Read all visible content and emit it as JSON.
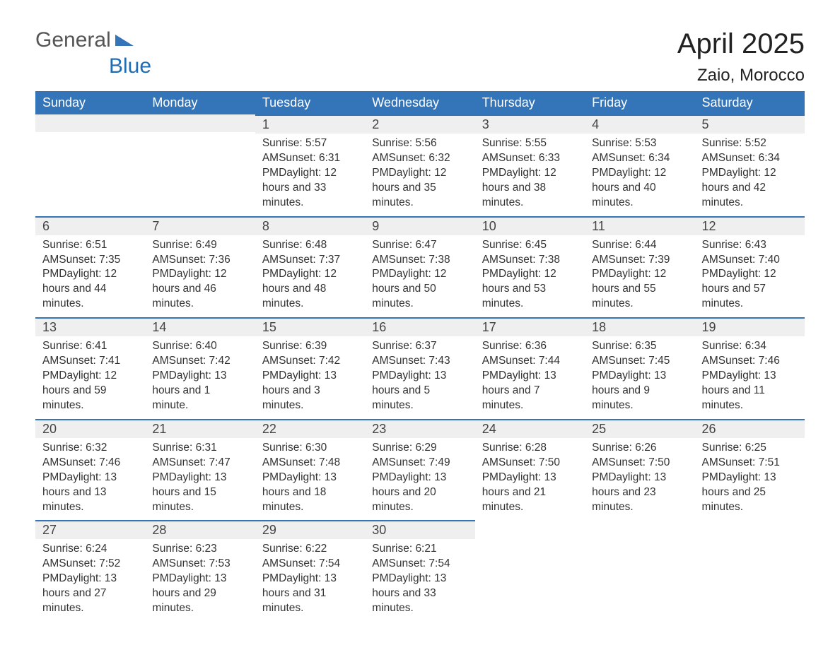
{
  "logo": {
    "text_general": "General",
    "text_blue": "Blue",
    "icon_color": "#3474b8"
  },
  "header": {
    "month_title": "April 2025",
    "location": "Zaio, Morocco"
  },
  "style": {
    "header_bg": "#3474b8",
    "header_text_color": "#ffffff",
    "day_separator_color": "#3474b8",
    "day_num_bg": "#efefef",
    "body_text_color": "#333333",
    "page_bg": "#ffffff",
    "title_fontsize": 40,
    "location_fontsize": 24,
    "header_fontsize": 18,
    "daynum_fontsize": 18,
    "data_fontsize": 15.5
  },
  "weekday_headers": [
    "Sunday",
    "Monday",
    "Tuesday",
    "Wednesday",
    "Thursday",
    "Friday",
    "Saturday"
  ],
  "labels": {
    "sunrise": "Sunrise: ",
    "sunset": "Sunset: ",
    "daylight": "Daylight: "
  },
  "weeks": [
    [
      null,
      null,
      {
        "n": "1",
        "sunrise": "5:57 AM",
        "sunset": "6:31 PM",
        "daylight": "12 hours and 33 minutes."
      },
      {
        "n": "2",
        "sunrise": "5:56 AM",
        "sunset": "6:32 PM",
        "daylight": "12 hours and 35 minutes."
      },
      {
        "n": "3",
        "sunrise": "5:55 AM",
        "sunset": "6:33 PM",
        "daylight": "12 hours and 38 minutes."
      },
      {
        "n": "4",
        "sunrise": "5:53 AM",
        "sunset": "6:34 PM",
        "daylight": "12 hours and 40 minutes."
      },
      {
        "n": "5",
        "sunrise": "5:52 AM",
        "sunset": "6:34 PM",
        "daylight": "12 hours and 42 minutes."
      }
    ],
    [
      {
        "n": "6",
        "sunrise": "6:51 AM",
        "sunset": "7:35 PM",
        "daylight": "12 hours and 44 minutes."
      },
      {
        "n": "7",
        "sunrise": "6:49 AM",
        "sunset": "7:36 PM",
        "daylight": "12 hours and 46 minutes."
      },
      {
        "n": "8",
        "sunrise": "6:48 AM",
        "sunset": "7:37 PM",
        "daylight": "12 hours and 48 minutes."
      },
      {
        "n": "9",
        "sunrise": "6:47 AM",
        "sunset": "7:38 PM",
        "daylight": "12 hours and 50 minutes."
      },
      {
        "n": "10",
        "sunrise": "6:45 AM",
        "sunset": "7:38 PM",
        "daylight": "12 hours and 53 minutes."
      },
      {
        "n": "11",
        "sunrise": "6:44 AM",
        "sunset": "7:39 PM",
        "daylight": "12 hours and 55 minutes."
      },
      {
        "n": "12",
        "sunrise": "6:43 AM",
        "sunset": "7:40 PM",
        "daylight": "12 hours and 57 minutes."
      }
    ],
    [
      {
        "n": "13",
        "sunrise": "6:41 AM",
        "sunset": "7:41 PM",
        "daylight": "12 hours and 59 minutes."
      },
      {
        "n": "14",
        "sunrise": "6:40 AM",
        "sunset": "7:42 PM",
        "daylight": "13 hours and 1 minute."
      },
      {
        "n": "15",
        "sunrise": "6:39 AM",
        "sunset": "7:42 PM",
        "daylight": "13 hours and 3 minutes."
      },
      {
        "n": "16",
        "sunrise": "6:37 AM",
        "sunset": "7:43 PM",
        "daylight": "13 hours and 5 minutes."
      },
      {
        "n": "17",
        "sunrise": "6:36 AM",
        "sunset": "7:44 PM",
        "daylight": "13 hours and 7 minutes."
      },
      {
        "n": "18",
        "sunrise": "6:35 AM",
        "sunset": "7:45 PM",
        "daylight": "13 hours and 9 minutes."
      },
      {
        "n": "19",
        "sunrise": "6:34 AM",
        "sunset": "7:46 PM",
        "daylight": "13 hours and 11 minutes."
      }
    ],
    [
      {
        "n": "20",
        "sunrise": "6:32 AM",
        "sunset": "7:46 PM",
        "daylight": "13 hours and 13 minutes."
      },
      {
        "n": "21",
        "sunrise": "6:31 AM",
        "sunset": "7:47 PM",
        "daylight": "13 hours and 15 minutes."
      },
      {
        "n": "22",
        "sunrise": "6:30 AM",
        "sunset": "7:48 PM",
        "daylight": "13 hours and 18 minutes."
      },
      {
        "n": "23",
        "sunrise": "6:29 AM",
        "sunset": "7:49 PM",
        "daylight": "13 hours and 20 minutes."
      },
      {
        "n": "24",
        "sunrise": "6:28 AM",
        "sunset": "7:50 PM",
        "daylight": "13 hours and 21 minutes."
      },
      {
        "n": "25",
        "sunrise": "6:26 AM",
        "sunset": "7:50 PM",
        "daylight": "13 hours and 23 minutes."
      },
      {
        "n": "26",
        "sunrise": "6:25 AM",
        "sunset": "7:51 PM",
        "daylight": "13 hours and 25 minutes."
      }
    ],
    [
      {
        "n": "27",
        "sunrise": "6:24 AM",
        "sunset": "7:52 PM",
        "daylight": "13 hours and 27 minutes."
      },
      {
        "n": "28",
        "sunrise": "6:23 AM",
        "sunset": "7:53 PM",
        "daylight": "13 hours and 29 minutes."
      },
      {
        "n": "29",
        "sunrise": "6:22 AM",
        "sunset": "7:54 PM",
        "daylight": "13 hours and 31 minutes."
      },
      {
        "n": "30",
        "sunrise": "6:21 AM",
        "sunset": "7:54 PM",
        "daylight": "13 hours and 33 minutes."
      },
      null,
      null,
      null
    ]
  ]
}
